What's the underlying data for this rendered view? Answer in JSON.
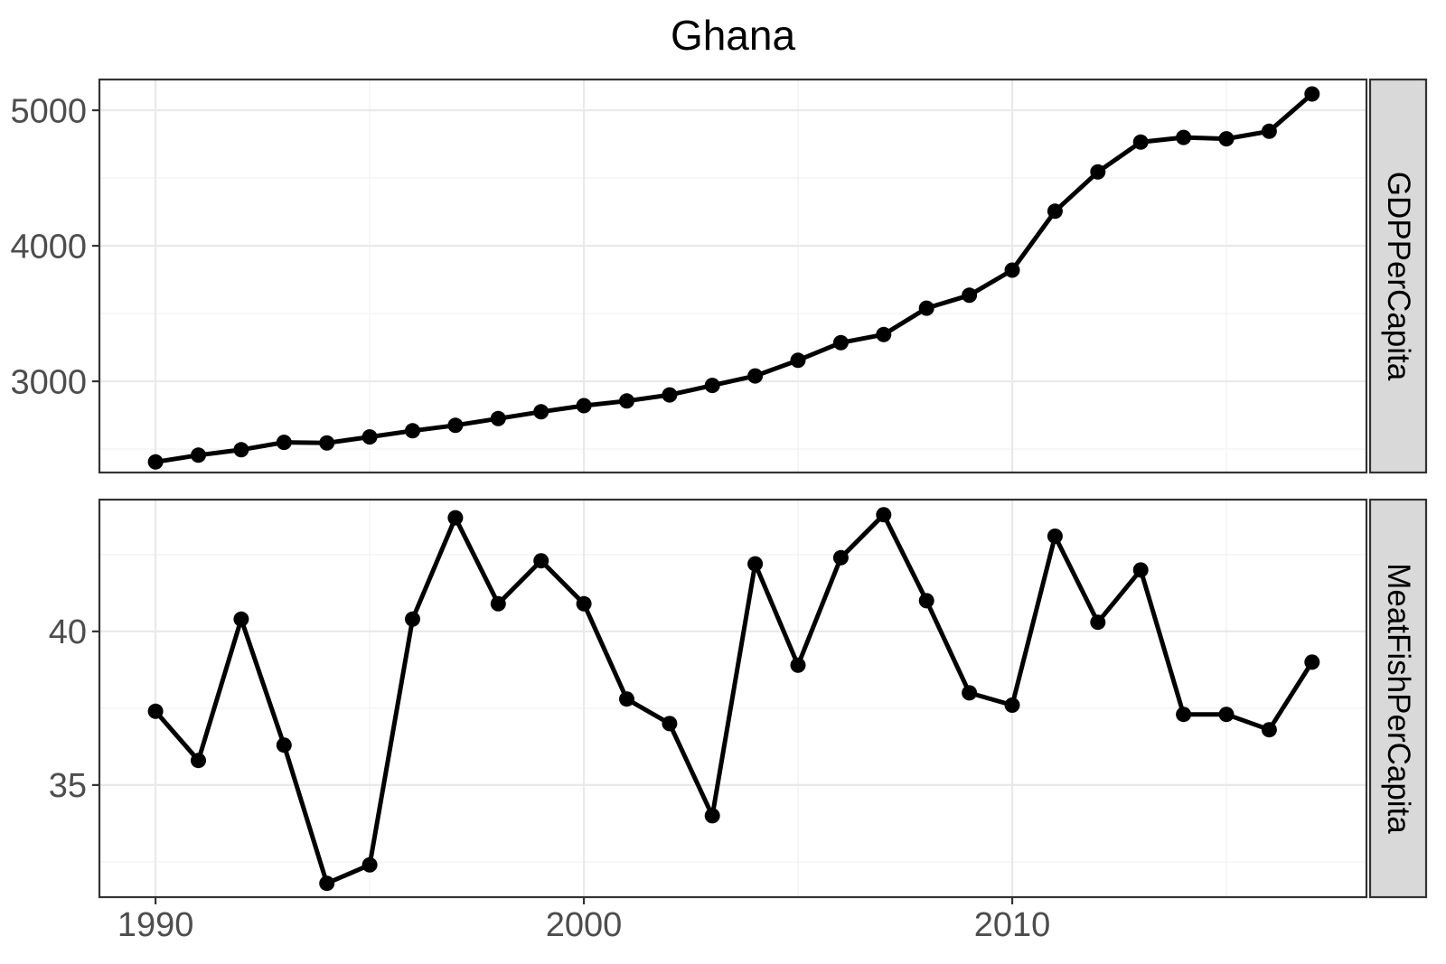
{
  "title": "Ghana",
  "x_axis": {
    "tick_labels": [
      "1990",
      "2000",
      "2010"
    ],
    "tick_years": [
      1990,
      2000,
      2010
    ],
    "minor_years": [
      1995,
      2005,
      2015
    ]
  },
  "colors": {
    "background": "#ffffff",
    "panel_background": "#ffffff",
    "panel_border": "#333333",
    "grid_major": "#e9e9e9",
    "grid_minor": "#f3f3f3",
    "strip_background": "#d9d9d9",
    "strip_border": "#333333",
    "strip_text": "#000000",
    "axis_text": "#4d4d4d",
    "tick_mark": "#333333",
    "series": "#000000",
    "title_text": "#000000"
  },
  "xlim": [
    1988.69,
    2018.27
  ],
  "chart_data": [
    {
      "type": "line",
      "facet_label": "GDPPerCapita",
      "series_color": "#000000",
      "x": [
        1990,
        1991,
        1992,
        1993,
        1994,
        1995,
        1996,
        1997,
        1998,
        1999,
        2000,
        2001,
        2002,
        2003,
        2004,
        2005,
        2006,
        2007,
        2008,
        2009,
        2010,
        2011,
        2012,
        2013,
        2014,
        2015,
        2016,
        2017
      ],
      "values": [
        2405,
        2455,
        2495,
        2550,
        2545,
        2590,
        2635,
        2675,
        2725,
        2775,
        2820,
        2855,
        2900,
        2970,
        3040,
        3155,
        3285,
        3345,
        3540,
        3635,
        3820,
        4255,
        4545,
        4765,
        4800,
        4790,
        4845,
        5120
      ],
      "y_ticks": [
        3000,
        4000,
        5000
      ],
      "y_minor_ticks": [
        2500,
        3500,
        4500
      ],
      "ylim": [
        2327,
        5227
      ],
      "grid": true,
      "legend": "none"
    },
    {
      "type": "line",
      "facet_label": "MeatFishPerCapita",
      "series_color": "#000000",
      "x": [
        1990,
        1991,
        1992,
        1993,
        1994,
        1995,
        1996,
        1997,
        1998,
        1999,
        2000,
        2001,
        2002,
        2003,
        2004,
        2005,
        2006,
        2007,
        2008,
        2009,
        2010,
        2011,
        2012,
        2013,
        2014,
        2015,
        2016,
        2017
      ],
      "values": [
        37.4,
        35.8,
        40.4,
        36.3,
        31.8,
        32.4,
        40.4,
        43.7,
        40.9,
        42.3,
        40.9,
        37.8,
        37.0,
        34.0,
        42.2,
        38.9,
        42.4,
        43.8,
        41.0,
        38.0,
        37.6,
        43.1,
        40.3,
        42.0,
        37.3,
        37.3,
        36.8,
        39.0
      ],
      "y_ticks": [
        35,
        40
      ],
      "y_minor_ticks": [
        32.5,
        37.5,
        42.5
      ],
      "ylim": [
        31.35,
        44.29
      ],
      "grid": true,
      "legend": "none"
    }
  ]
}
